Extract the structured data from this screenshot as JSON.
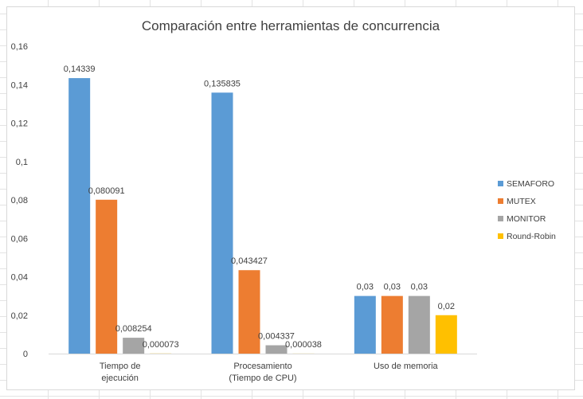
{
  "chart_data": {
    "type": "bar",
    "title": "Comparación entre herramientas de concurrencia",
    "categories": [
      [
        "Tiempo de",
        "ejecución"
      ],
      [
        "Procesamiento",
        "(Tiempo de CPU)"
      ],
      [
        "Uso de memoria"
      ]
    ],
    "series": [
      {
        "name": "SEMAFORO",
        "color": "#5b9bd5",
        "values": [
          0.14339,
          0.135835,
          0.03
        ],
        "labels": [
          "0,14339",
          "0,135835",
          "0,03"
        ]
      },
      {
        "name": "MUTEX",
        "color": "#ed7d31",
        "values": [
          0.080091,
          0.043427,
          0.03
        ],
        "labels": [
          "0,080091",
          "0,043427",
          "0,03"
        ]
      },
      {
        "name": "MONITOR",
        "color": "#a5a5a5",
        "values": [
          0.008254,
          0.004337,
          0.03
        ],
        "labels": [
          "0,008254",
          "0,004337",
          "0,03"
        ]
      },
      {
        "name": "Round-Robin",
        "color": "#ffc000",
        "values": [
          7.3e-05,
          3.8e-05,
          0.02
        ],
        "labels": [
          "0,000073",
          "0,000038",
          "0,02"
        ]
      }
    ],
    "ylim": [
      0,
      0.16
    ],
    "yticks": [
      0,
      0.02,
      0.04,
      0.06,
      0.08,
      0.1,
      0.12,
      0.14,
      0.16
    ],
    "ytick_labels": [
      "0",
      "0,02",
      "0,04",
      "0,06",
      "0,08",
      "0,1",
      "0,12",
      "0,14",
      "0,16"
    ],
    "grid": false,
    "legend": "right"
  }
}
